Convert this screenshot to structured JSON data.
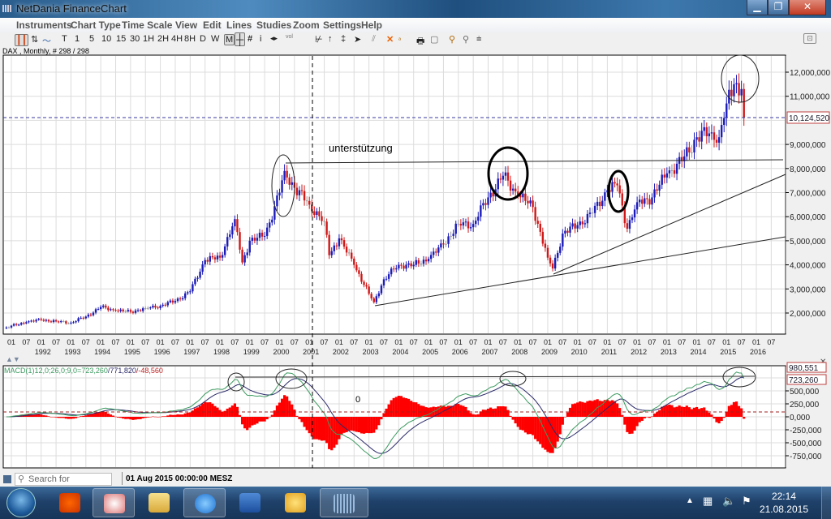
{
  "window": {
    "title": "NetDania FinanceChart",
    "controls": [
      "minimize",
      "maximize",
      "close"
    ]
  },
  "menu": [
    "Instruments",
    "Chart Type",
    "Time Scale",
    "View",
    "Edit",
    "Lines",
    "Studies",
    "Zoom",
    "Settings",
    "Help"
  ],
  "toolbar": {
    "intervals": [
      "T",
      "1",
      "5",
      "10",
      "15",
      "30",
      "1H",
      "2H",
      "4H",
      "8H",
      "D",
      "W",
      "M"
    ],
    "selected_interval": "M",
    "icons": [
      "candlestick-icon",
      "ohlc-bar-icon",
      "line-chart-icon",
      "crosshair-icon",
      "grid-icon",
      "info-icon",
      "pan-icon",
      "volume-icon",
      "trendline-icon",
      "fan-icon",
      "channel-icon",
      "arrow-icon",
      "parallel-lines-icon",
      "delete-lines-icon",
      "text-annotation-icon",
      "print-icon",
      "print-preview-icon",
      "zoom-in-icon",
      "zoom-out-icon",
      "fit-icon",
      "detach-icon"
    ],
    "text_icon_label": "i",
    "vol_label": "vol"
  },
  "chart_info": "DAX , Monthly, # 298 / 298",
  "chart_data": {
    "type": "candlestick",
    "instrument": "DAX",
    "interval": "Monthly",
    "bar_count": "298 / 298",
    "y_ticks": [
      "2,000,000",
      "3,000,000",
      "4,000,000",
      "5,000,000",
      "6,000,000",
      "7,000,000",
      "8,000,000",
      "9,000,000",
      "10,000,000",
      "11,000,000",
      "12,000,000"
    ],
    "ylim": [
      1300000,
      12700000
    ],
    "x_month_ticks": [
      "01",
      "07"
    ],
    "x_years": [
      "1992",
      "1993",
      "1994",
      "1995",
      "1996",
      "1997",
      "1998",
      "1999",
      "2000",
      "2001",
      "2002",
      "2003",
      "2004",
      "2005",
      "2006",
      "2007",
      "2008",
      "2009",
      "2010",
      "2011",
      "2012",
      "2013",
      "2014",
      "2015",
      "2016"
    ],
    "grid": true,
    "last_price_label": "10,124,520",
    "colors": {
      "up": "#1c1cb8",
      "down": "#d01818",
      "neutral": "#9a9a9a",
      "last_price_line": "#3a3aa0"
    },
    "close_anchors": [
      [
        "1990-11",
        1400000
      ],
      [
        "1991-07",
        1620000
      ],
      [
        "1992-01",
        1720000
      ],
      [
        "1992-07",
        1650000
      ],
      [
        "1993-01",
        1600000
      ],
      [
        "1993-07",
        1850000
      ],
      [
        "1994-01",
        2250000
      ],
      [
        "1994-07",
        2100000
      ],
      [
        "1995-01",
        2050000
      ],
      [
        "1995-07",
        2200000
      ],
      [
        "1996-01",
        2300000
      ],
      [
        "1996-07",
        2500000
      ],
      [
        "1997-01",
        2900000
      ],
      [
        "1997-07",
        4200000
      ],
      [
        "1998-01",
        4300000
      ],
      [
        "1998-07",
        5900000
      ],
      [
        "1998-10",
        4100000
      ],
      [
        "1999-01",
        5000000
      ],
      [
        "1999-07",
        5200000
      ],
      [
        "2000-01",
        7000000
      ],
      [
        "2000-03",
        7900000
      ],
      [
        "2000-07",
        7200000
      ],
      [
        "2001-01",
        6500000
      ],
      [
        "2001-07",
        5800000
      ],
      [
        "2001-09",
        4400000
      ],
      [
        "2002-01",
        5100000
      ],
      [
        "2002-07",
        4000000
      ],
      [
        "2003-01",
        2800000
      ],
      [
        "2003-03",
        2450000
      ],
      [
        "2003-07",
        3400000
      ],
      [
        "2004-01",
        4000000
      ],
      [
        "2004-07",
        4000000
      ],
      [
        "2005-01",
        4250000
      ],
      [
        "2005-07",
        4850000
      ],
      [
        "2006-01",
        5700000
      ],
      [
        "2006-07",
        5700000
      ],
      [
        "2007-01",
        6800000
      ],
      [
        "2007-07",
        7700000
      ],
      [
        "2008-01",
        6900000
      ],
      [
        "2008-07",
        6400000
      ],
      [
        "2009-01",
        4300000
      ],
      [
        "2009-03",
        3850000
      ],
      [
        "2009-07",
        5300000
      ],
      [
        "2010-01",
        5650000
      ],
      [
        "2010-07",
        6150000
      ],
      [
        "2011-01",
        7100000
      ],
      [
        "2011-05",
        7300000
      ],
      [
        "2011-09",
        5500000
      ],
      [
        "2012-01",
        6600000
      ],
      [
        "2012-07",
        6800000
      ],
      [
        "2013-01",
        7800000
      ],
      [
        "2013-07",
        8300000
      ],
      [
        "2014-01",
        9300000
      ],
      [
        "2014-07",
        9500000
      ],
      [
        "2014-10",
        9300000
      ],
      [
        "2015-01",
        10700000
      ],
      [
        "2015-04",
        11500000
      ],
      [
        "2015-07",
        11300000
      ],
      [
        "2015-08",
        10124520
      ]
    ],
    "annotations": {
      "support_label": "unterstützung",
      "macd_mark": "0"
    },
    "macd": {
      "label": "MACD(1)12,0;26,0;9,0=",
      "macd_value": "723,260",
      "signal_value": "/771,820",
      "histogram_value": "/-48,560",
      "params": [
        12,
        26,
        9
      ],
      "y_ticks": [
        "500,000",
        "250,000",
        "0,000",
        "-250,000",
        "-500,000",
        "-750,000"
      ],
      "boxed_labels": [
        "980,551",
        "723,260"
      ],
      "colors": {
        "macd": "#2a2a6a",
        "signal": "#3c9a60",
        "histogram": "#ff0000"
      }
    }
  },
  "status": {
    "search_placeholder": "Search for instrument",
    "datetime": "01 Aug 2015 00:00:00 MESZ"
  },
  "taskbar": {
    "apps": [
      "start-button",
      "photo-gallery",
      "snipping-tool",
      "file-explorer",
      "internet-explorer",
      "word",
      "outlook",
      "netdania"
    ],
    "time": "22:14",
    "date": "21.08.2015"
  }
}
